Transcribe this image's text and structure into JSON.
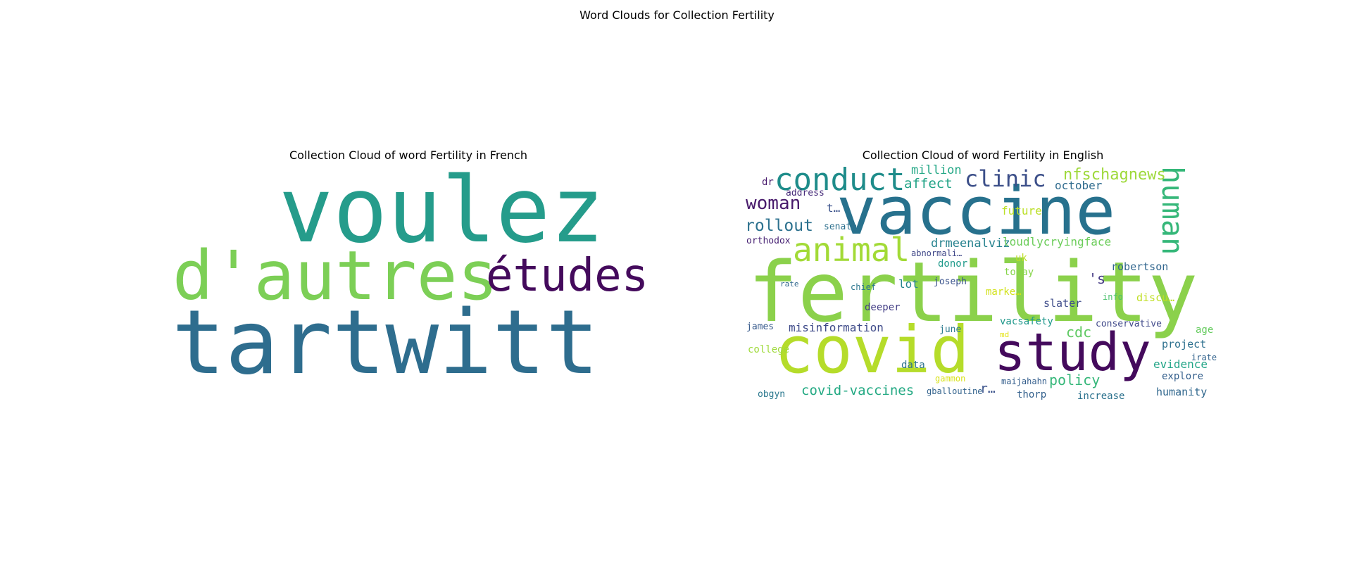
{
  "figure": {
    "title": "Word Clouds for Collection Fertility"
  },
  "panels": [
    {
      "title": "Collection Cloud of word Fertility in French",
      "words": [
        {
          "text": "voulez",
          "color": "#259c8b"
        },
        {
          "text": "d'autres",
          "color": "#7ccf56"
        },
        {
          "text": "études",
          "color": "#440a5c"
        },
        {
          "text": "tartwitt",
          "color": "#2e6d8e"
        }
      ]
    },
    {
      "title": "Collection Cloud of word Fertility in English",
      "words": [
        {
          "text": "vaccine",
          "color": "#27718d"
        },
        {
          "text": "fertility",
          "color": "#8bd14b"
        },
        {
          "text": "covid",
          "color": "#b5dc2a"
        },
        {
          "text": "study",
          "color": "#440a5c"
        },
        {
          "text": "conduct",
          "color": "#1e8c8a"
        },
        {
          "text": "clinic",
          "color": "#3c4f89"
        },
        {
          "text": "animal",
          "color": "#a2da36"
        },
        {
          "text": "human",
          "color": "#35b779"
        },
        {
          "text": "nfschagnews",
          "color": "#9ed93a"
        },
        {
          "text": "woman",
          "color": "#481a6c"
        },
        {
          "text": "rollout",
          "color": "#2c718e"
        },
        {
          "text": "million",
          "color": "#22a785"
        },
        {
          "text": "affect",
          "color": "#20a386"
        },
        {
          "text": "october",
          "color": "#2f6b8e"
        },
        {
          "text": "address",
          "color": "#472b7a"
        },
        {
          "text": "dr",
          "color": "#481b6d"
        },
        {
          "text": "t…",
          "color": "#3b528b"
        },
        {
          "text": "future",
          "color": "#bbdf27"
        },
        {
          "text": "senate",
          "color": "#2d708e"
        },
        {
          "text": "orthodox",
          "color": "#482374"
        },
        {
          "text": "drmeenalviz",
          "color": "#26828e"
        },
        {
          "text": "loudlycryingface",
          "color": "#6ccd5a"
        },
        {
          "text": "abnormali…",
          "color": "#3f4788"
        },
        {
          "text": "uk",
          "color": "#bddf26"
        },
        {
          "text": "donor",
          "color": "#1f9a8a"
        },
        {
          "text": "today",
          "color": "#86d549"
        },
        {
          "text": "joseph",
          "color": "#3a538b"
        },
        {
          "text": "'s",
          "color": "#443983"
        },
        {
          "text": "robertson",
          "color": "#31668e"
        },
        {
          "text": "lot",
          "color": "#25858e"
        },
        {
          "text": "marke…",
          "color": "#d2e21b"
        },
        {
          "text": "chief",
          "color": "#2b758e"
        },
        {
          "text": "slater",
          "color": "#3e4c8a"
        },
        {
          "text": "info",
          "color": "#4ac16d"
        },
        {
          "text": "discu…",
          "color": "#c0df25"
        },
        {
          "text": "deeper",
          "color": "#433e85"
        },
        {
          "text": "rate",
          "color": "#31688e"
        },
        {
          "text": "vacsafety",
          "color": "#1f988b"
        },
        {
          "text": "conservative",
          "color": "#3f4889"
        },
        {
          "text": "james",
          "color": "#375a8c"
        },
        {
          "text": "misinformation",
          "color": "#3e4a89"
        },
        {
          "text": "june",
          "color": "#29798e"
        },
        {
          "text": "md",
          "color": "#e5e419"
        },
        {
          "text": "cdc",
          "color": "#5ec962"
        },
        {
          "text": "age",
          "color": "#65cb5e"
        },
        {
          "text": "project",
          "color": "#2d708e"
        },
        {
          "text": "irate",
          "color": "#33638d"
        },
        {
          "text": "college",
          "color": "#9fda3a"
        },
        {
          "text": "data",
          "color": "#2c728e"
        },
        {
          "text": "evidence",
          "color": "#20a486"
        },
        {
          "text": "explore",
          "color": "#35608d"
        },
        {
          "text": "gammon",
          "color": "#d8e219"
        },
        {
          "text": "maijahahn",
          "color": "#355f8d"
        },
        {
          "text": "policy",
          "color": "#35b779"
        },
        {
          "text": "r…",
          "color": "#3b528b"
        },
        {
          "text": "obgyn",
          "color": "#2a788e"
        },
        {
          "text": "covid-vaccines",
          "color": "#23a983"
        },
        {
          "text": "gballoutine",
          "color": "#33638d"
        },
        {
          "text": "thorp",
          "color": "#34618d"
        },
        {
          "text": "increase",
          "color": "#2c728e"
        },
        {
          "text": "humanity",
          "color": "#31688e"
        }
      ]
    }
  ]
}
